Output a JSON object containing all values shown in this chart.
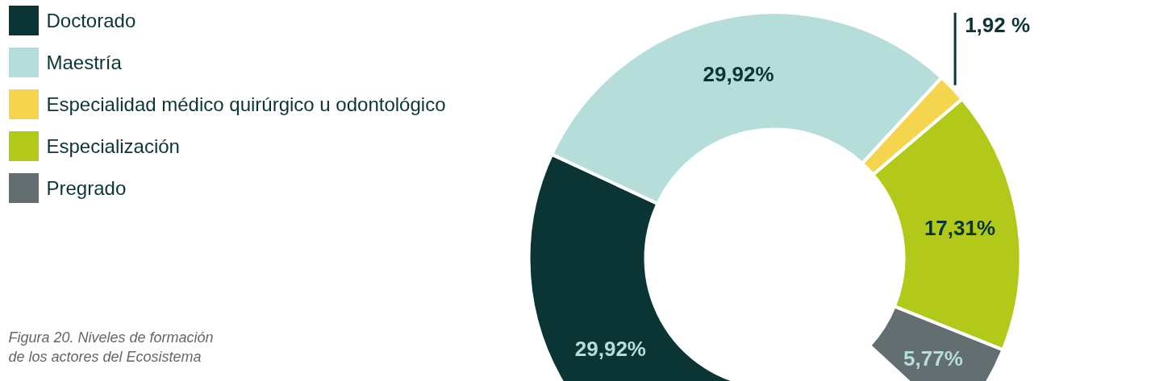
{
  "chart_data": {
    "type": "donut",
    "categories": [
      "Doctorado",
      "Maestría",
      "Especialidad médico quirúrgico u odontológico",
      "Especialización",
      "Pregrado"
    ],
    "values": [
      29.92,
      29.92,
      1.92,
      17.31,
      5.77
    ],
    "colors": [
      "#0b3535",
      "#b5ddd9",
      "#f5d44e",
      "#b2c91a",
      "#626e70"
    ],
    "value_labels": [
      "29,92%",
      "29,92%",
      "1,92 %",
      "17,31%",
      "5,77%"
    ],
    "legend": "top left",
    "annotations": [
      "Figura 20. Niveles de formación de los actores del Ecosistema"
    ]
  }
}
